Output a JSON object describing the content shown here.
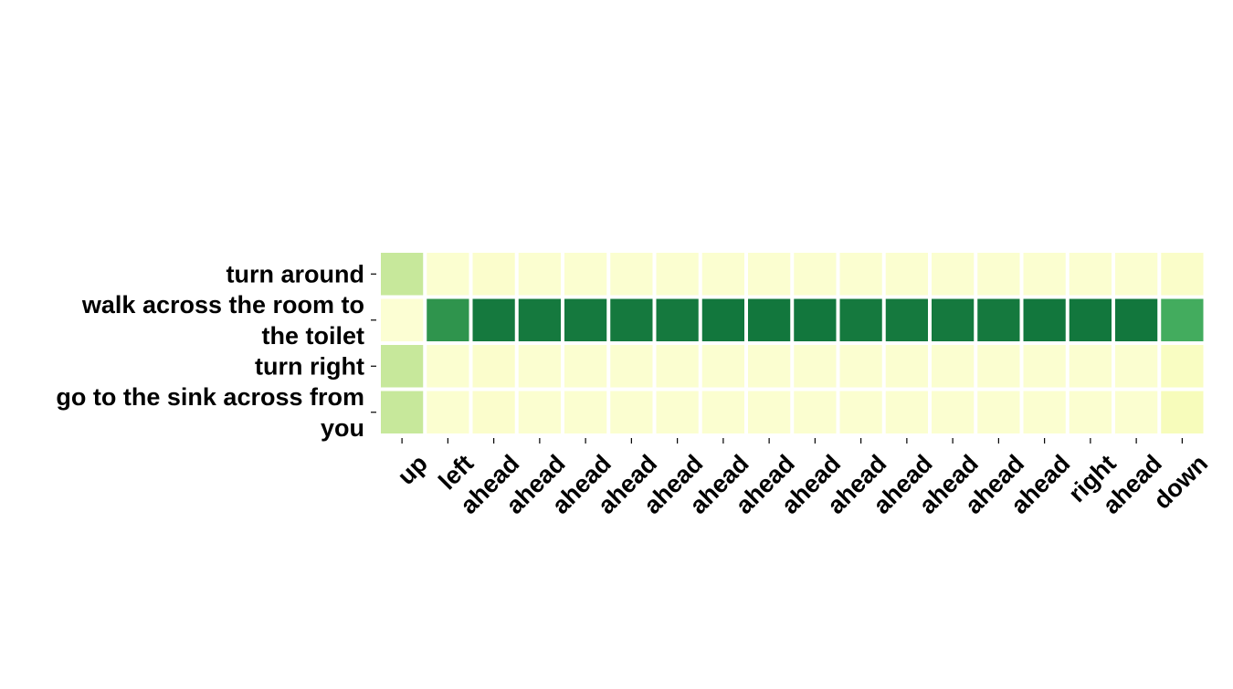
{
  "chart_data": {
    "type": "heatmap",
    "title": "",
    "xlabel": "",
    "ylabel": "",
    "colorscale": "YlGn",
    "value_range": [
      0,
      1
    ],
    "grid": false,
    "x_labels": [
      "up",
      "left",
      "ahead",
      "ahead",
      "ahead",
      "ahead",
      "ahead",
      "ahead",
      "ahead",
      "ahead",
      "ahead",
      "ahead",
      "ahead",
      "ahead",
      "ahead",
      "right",
      "ahead",
      "down"
    ],
    "y_labels": [
      [
        "turn around"
      ],
      [
        "walk across the room to",
        "the toilet"
      ],
      [
        "turn right"
      ],
      [
        "go to the sink across from",
        "you"
      ]
    ],
    "values": [
      [
        0.3,
        0.06,
        0.07,
        0.06,
        0.06,
        0.06,
        0.06,
        0.06,
        0.06,
        0.06,
        0.06,
        0.06,
        0.06,
        0.06,
        0.06,
        0.06,
        0.06,
        0.08
      ],
      [
        0.05,
        0.7,
        0.8,
        0.8,
        0.8,
        0.8,
        0.8,
        0.81,
        0.81,
        0.81,
        0.8,
        0.8,
        0.8,
        0.8,
        0.81,
        0.81,
        0.81,
        0.62
      ],
      [
        0.3,
        0.06,
        0.07,
        0.06,
        0.06,
        0.06,
        0.06,
        0.06,
        0.06,
        0.06,
        0.06,
        0.06,
        0.06,
        0.06,
        0.06,
        0.06,
        0.06,
        0.1
      ],
      [
        0.3,
        0.06,
        0.07,
        0.06,
        0.06,
        0.06,
        0.06,
        0.06,
        0.06,
        0.06,
        0.06,
        0.06,
        0.06,
        0.06,
        0.06,
        0.06,
        0.06,
        0.12
      ]
    ]
  }
}
